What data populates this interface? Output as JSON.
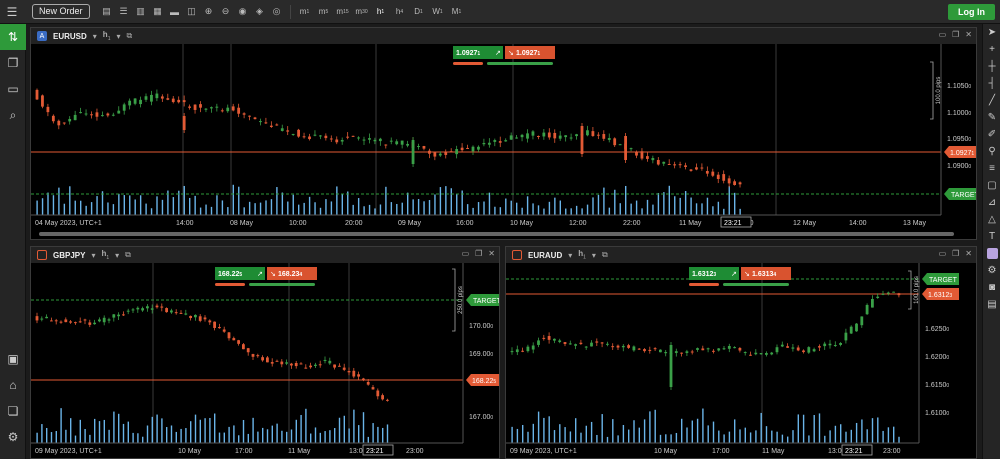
{
  "toolbar": {
    "new_order_label": "New Order",
    "icons": [
      "order-form-icon",
      "quote-list-icon",
      "layout-icon",
      "grid-icon",
      "single-window-icon",
      "candle-pattern-icon",
      "zoom-in-icon",
      "zoom-out-icon",
      "fingerprint-icon",
      "layers-icon",
      "eye-icon"
    ],
    "timeframes": [
      {
        "main": "m",
        "sub": "1"
      },
      {
        "main": "m",
        "sub": "5"
      },
      {
        "main": "m",
        "sub": "15"
      },
      {
        "main": "m",
        "sub": "30"
      },
      {
        "main": "h",
        "sub": "1"
      },
      {
        "main": "h",
        "sub": "4"
      },
      {
        "main": "D",
        "sub": "1"
      },
      {
        "main": "W",
        "sub": "1"
      },
      {
        "main": "M",
        "sub": "1"
      }
    ],
    "login_label": "Log In"
  },
  "sidebar": {
    "items": [
      "trade-icon",
      "copy-icon",
      "terminal-icon",
      "search-chart-icon"
    ],
    "bottom_items": [
      "briefcase-icon",
      "bank-icon",
      "stack-icon",
      "gear-icon"
    ]
  },
  "right_tools": [
    "cursor-icon",
    "crosshair-icon",
    "vertical-line-icon",
    "horizontal-line-icon",
    "trend-line-icon",
    "brush-icon",
    "pen-icon",
    "pin-icon",
    "fibonacci-icon",
    "comment-icon",
    "ruler-icon",
    "shape-icon",
    "text-icon",
    "color-icon",
    "settings-icon",
    "camera-icon",
    "lock-icon"
  ],
  "colors": {
    "bull": "#3aa048",
    "bear": "#e25a35",
    "volume": "#6ab4e8",
    "target": "#2e9a3a"
  },
  "charts": [
    {
      "symbol": "EURUSD",
      "timeframe": "h",
      "timeframe_sub": "1",
      "badge": "A",
      "badge_color": "#3a6cc4",
      "bid": "1.0927",
      "bid_small": "1",
      "ask": "1.0927",
      "ask_small": "1",
      "pips_label": "100.0 pips",
      "price_labels": [
        "1.1050",
        "1.1000",
        "1.0950",
        "1.0900"
      ],
      "price_small": [
        "0",
        "0",
        "0",
        "0"
      ],
      "current_price": "1.0927",
      "current_small": "1",
      "target_label": "TARGET",
      "time_labels": [
        "04 May 2023, UTC+1",
        "14:00",
        "08 May",
        "10:00",
        "20:00",
        "09 May",
        "16:00",
        "10 May",
        "12:00",
        "22:00",
        "11 May",
        "18:00",
        "12 May",
        "14:00",
        "13 May"
      ],
      "cursor_time": "23:21"
    },
    {
      "symbol": "GBPJPY",
      "timeframe": "h",
      "timeframe_sub": "1",
      "badge": "",
      "badge_color": "#e25a35",
      "bid": "168.22",
      "bid_small": "5",
      "ask": "168.23",
      "ask_small": "4",
      "pips_label": "250.0 pips",
      "price_labels": [
        "170.00",
        "169.00",
        "167.00"
      ],
      "price_small": [
        "0",
        "0",
        "0"
      ],
      "current_price": "168.22",
      "current_small": "5",
      "target_label": "TARGET",
      "time_labels": [
        "09 May 2023, UTC+1",
        "10 May",
        "17:00",
        "11 May",
        "13:00",
        "23:00"
      ],
      "cursor_time": "23:21"
    },
    {
      "symbol": "EURAUD",
      "timeframe": "h",
      "timeframe_sub": "1",
      "badge": "",
      "badge_color": "#e25a35",
      "bid": "1.6312",
      "bid_small": "3",
      "ask": "1.6313",
      "ask_small": "4",
      "pips_label": "100.0 pips",
      "price_labels": [
        "1.6250",
        "1.6200",
        "1.6150",
        "1.6100"
      ],
      "price_small": [
        "0",
        "0",
        "0",
        "0"
      ],
      "current_price": "1.6312",
      "current_small": "3",
      "target_label": "TARGET",
      "time_labels": [
        "09 May 2023, UTC+1",
        "10 May",
        "17:00",
        "11 May",
        "13:00",
        "23:00"
      ],
      "cursor_time": "23:21"
    }
  ]
}
